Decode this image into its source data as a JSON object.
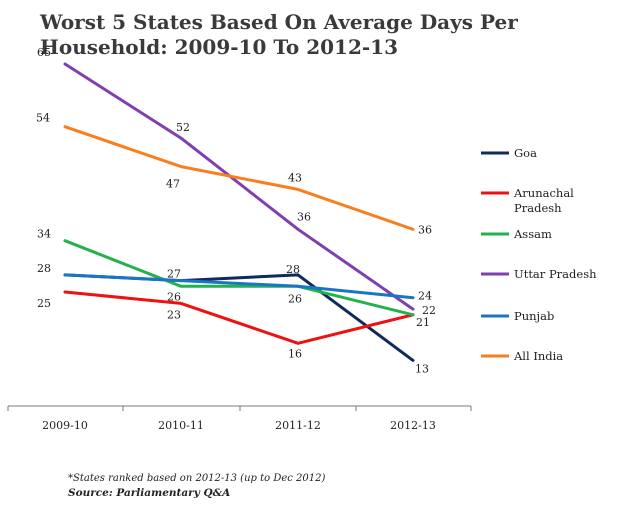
{
  "chart_data": {
    "type": "line",
    "title": "Worst 5 States Based On Average Days Per Household: 2009-10 To 2012-13",
    "categories": [
      "2009-10",
      "2010-11",
      "2011-12",
      "2012-13"
    ],
    "ylim": [
      0,
      75
    ],
    "grid": false,
    "legend_position": "right",
    "series": [
      {
        "name": "Goa",
        "values": [
          28,
          27,
          28,
          13
        ],
        "color": "#0f2a5c"
      },
      {
        "name": "Arunachal Pradesh",
        "values": [
          25,
          23,
          16,
          21
        ],
        "color": "#ee1111"
      },
      {
        "name": "Assam",
        "values": [
          34,
          26,
          26,
          21
        ],
        "color": "#22b24c"
      },
      {
        "name": "Uttar Pradesh",
        "values": [
          65,
          52,
          36,
          22
        ],
        "color": "#7f3fb0"
      },
      {
        "name": "Punjab",
        "values": [
          28,
          27,
          26,
          24
        ],
        "color": "#1a75c4"
      },
      {
        "name": "All India",
        "values": [
          54,
          47,
          43,
          36
        ],
        "color": "#f77f1f"
      }
    ],
    "legend_lines": [
      [
        "Goa"
      ],
      [
        "Arunachal",
        "Pradesh"
      ],
      [
        "Assam"
      ],
      [
        "Uttar Pradesh"
      ],
      [
        "Punjab"
      ],
      [
        "All India"
      ]
    ],
    "data_labels": [
      {
        "series": 0,
        "point": 0,
        "text": "28"
      },
      {
        "series": 0,
        "point": 1,
        "text": "27"
      },
      {
        "series": 0,
        "point": 2,
        "text": "28"
      },
      {
        "series": 0,
        "point": 3,
        "text": "13"
      },
      {
        "series": 1,
        "point": 0,
        "text": "25"
      },
      {
        "series": 1,
        "point": 1,
        "text": "23"
      },
      {
        "series": 1,
        "point": 2,
        "text": "16"
      },
      {
        "series": 1,
        "point": 3,
        "text": "21"
      },
      {
        "series": 2,
        "point": 0,
        "text": "34"
      },
      {
        "series": 2,
        "point": 1,
        "text": "26"
      },
      {
        "series": 2,
        "point": 2,
        "text": "26"
      },
      {
        "series": 3,
        "point": 0,
        "text": "65"
      },
      {
        "series": 3,
        "point": 1,
        "text": "52"
      },
      {
        "series": 3,
        "point": 2,
        "text": "36"
      },
      {
        "series": 3,
        "point": 3,
        "text": "22"
      },
      {
        "series": 4,
        "point": 3,
        "text": "24"
      },
      {
        "series": 5,
        "point": 0,
        "text": "54"
      },
      {
        "series": 5,
        "point": 1,
        "text": "47"
      },
      {
        "series": 5,
        "point": 2,
        "text": "43"
      },
      {
        "series": 5,
        "point": 3,
        "text": "36"
      }
    ],
    "footnote": "*States ranked based on 2012-13 (up to Dec 2012)",
    "source": "Source: Parliamentary Q&A"
  }
}
